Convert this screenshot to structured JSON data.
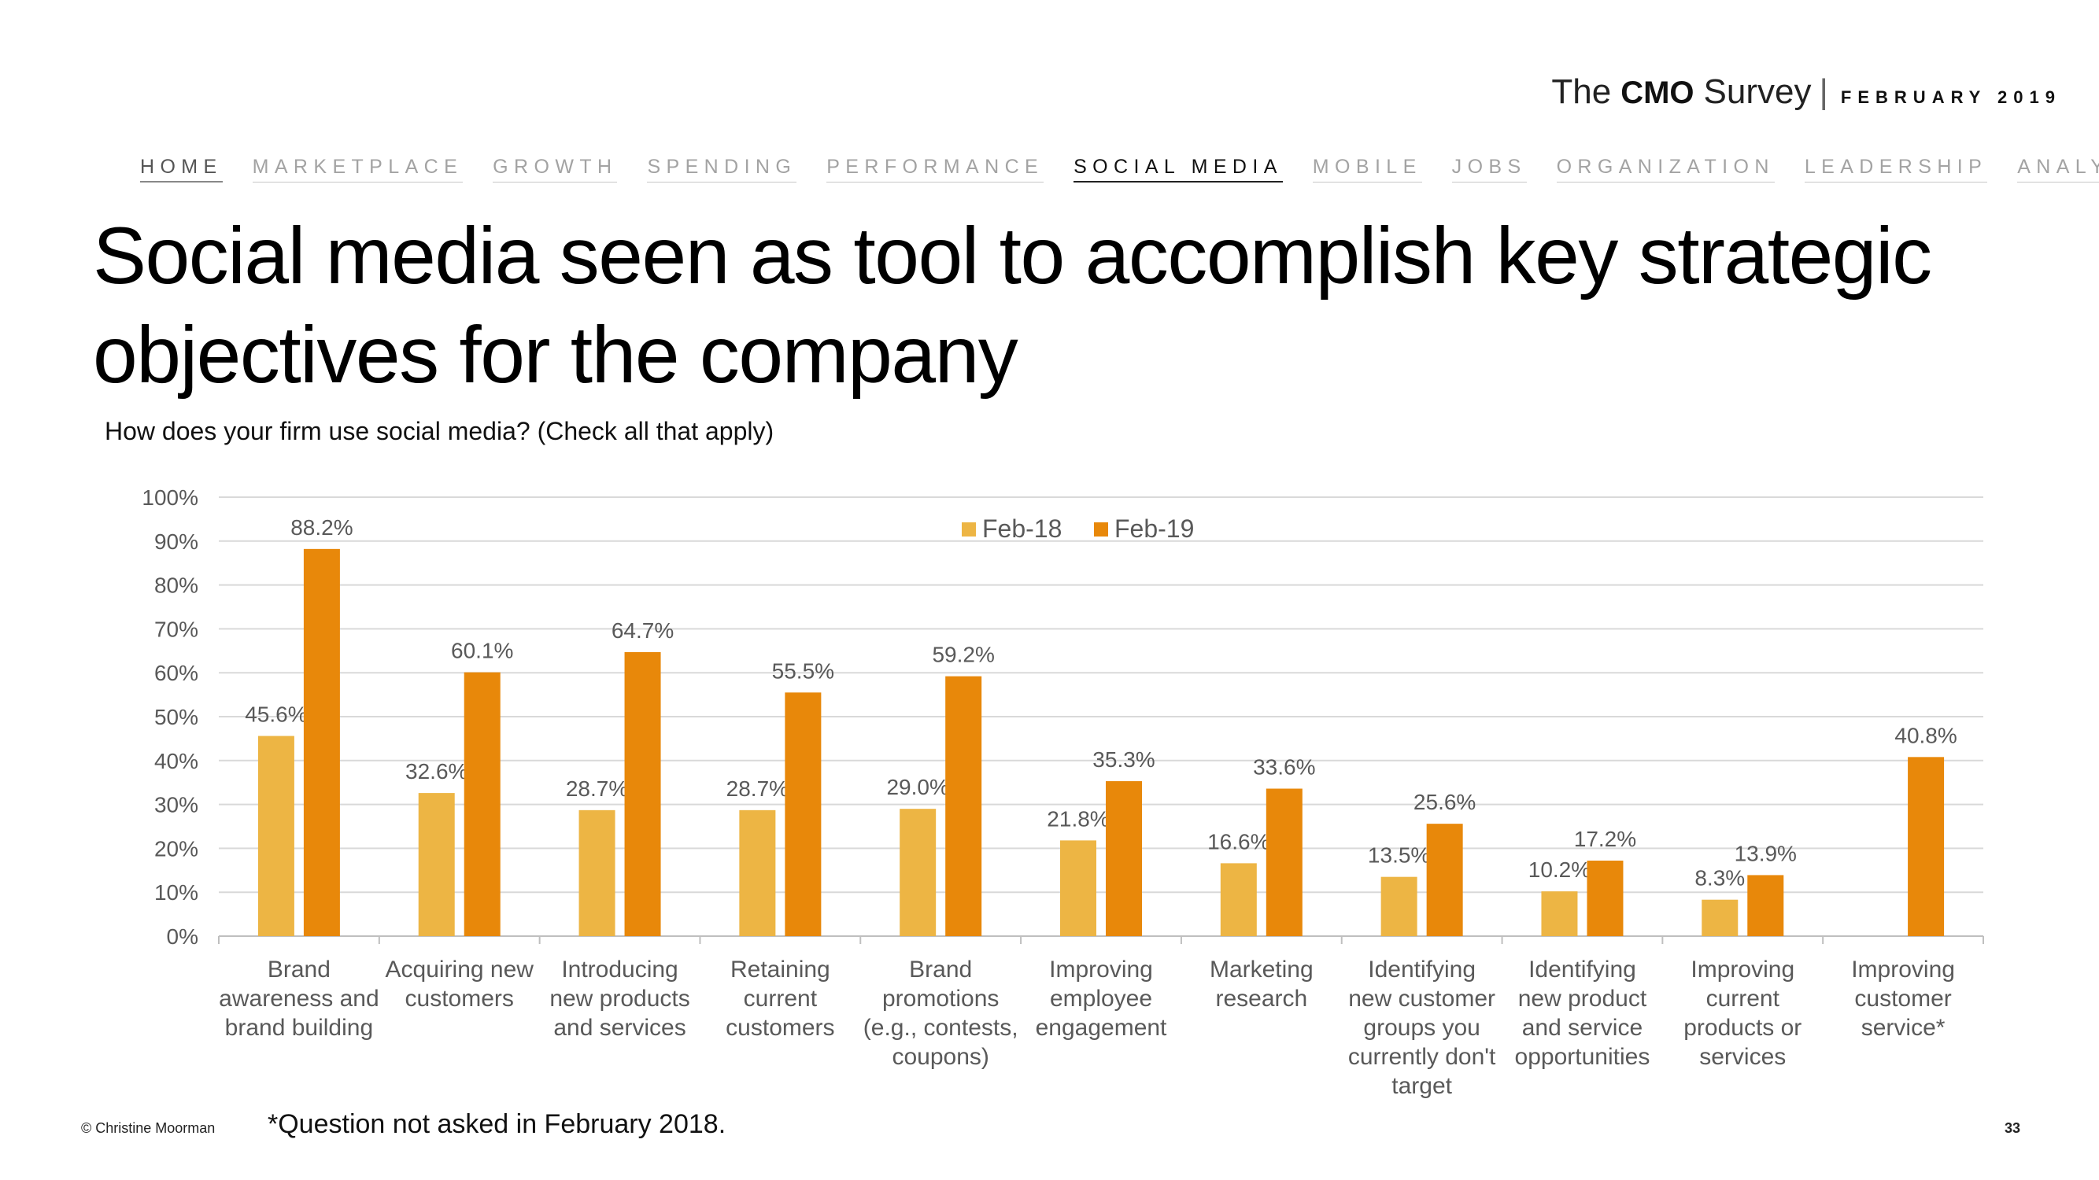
{
  "header": {
    "brand_the": "The",
    "brand_cmo": "CMO",
    "brand_survey": "Survey",
    "brand_sep": "|",
    "brand_date": "FEBRUARY 2019"
  },
  "nav": [
    {
      "label": "HOME"
    },
    {
      "label": "MARKETPLACE"
    },
    {
      "label": "GROWTH"
    },
    {
      "label": "SPENDING"
    },
    {
      "label": "PERFORMANCE"
    },
    {
      "label": "SOCIAL MEDIA"
    },
    {
      "label": "MOBILE"
    },
    {
      "label": "JOBS"
    },
    {
      "label": "ORGANIZATION"
    },
    {
      "label": "LEADERSHIP"
    },
    {
      "label": "ANALYTICS"
    }
  ],
  "nav_active": "SOCIAL MEDIA",
  "page": {
    "title": "Social media seen as tool to accomplish key strategic objectives for the company",
    "question": "How does your firm use social media? (Check all that apply)",
    "footnote": "*Question not asked in February 2018.",
    "copyright": "© Christine Moorman",
    "page_number": "33"
  },
  "chart_data": {
    "type": "bar",
    "categories": [
      "Brand awareness and brand building",
      "Acquiring new customers",
      "Introducing new products and services",
      "Retaining current customers",
      "Brand promotions (e.g., contests, coupons)",
      "Improving employee engagement",
      "Marketing research",
      "Identifying new customer groups you currently don't target",
      "Identifying new product and service opportunities",
      "Improving current products or services",
      "Improving customer service*"
    ],
    "category_lines": [
      [
        "Brand",
        "awareness and",
        "brand building"
      ],
      [
        "Acquiring new",
        "customers"
      ],
      [
        "Introducing",
        "new products",
        "and services"
      ],
      [
        "Retaining",
        "current",
        "customers"
      ],
      [
        "Brand",
        "promotions",
        "(e.g., contests,",
        "coupons)"
      ],
      [
        "Improving",
        "employee",
        "engagement"
      ],
      [
        "Marketing",
        "research"
      ],
      [
        "Identifying",
        "new customer",
        "groups you",
        "currently don't",
        "target"
      ],
      [
        "Identifying",
        "new product",
        "and service",
        "opportunities"
      ],
      [
        "Improving",
        "current",
        "products or",
        "services"
      ],
      [
        "Improving",
        "customer",
        "service*"
      ]
    ],
    "series": [
      {
        "name": "Feb-18",
        "color": "#EDB544",
        "values": [
          45.6,
          32.6,
          28.7,
          28.7,
          29.0,
          21.8,
          16.6,
          13.5,
          10.2,
          8.3,
          null
        ],
        "labels": [
          "45.6%",
          "32.6%",
          "28.7%",
          "28.7%",
          "29.0%",
          "21.8%",
          "16.6%",
          "13.5%",
          "10.2%",
          "8.3%",
          null
        ]
      },
      {
        "name": "Feb-19",
        "color": "#E8880A",
        "values": [
          88.2,
          60.1,
          64.7,
          55.5,
          59.2,
          35.3,
          33.6,
          25.6,
          17.2,
          13.9,
          40.8
        ],
        "labels": [
          "88.2%",
          "60.1%",
          "64.7%",
          "55.5%",
          "59.2%",
          "35.3%",
          "33.6%",
          "25.6%",
          "17.2%",
          "13.9%",
          "40.8%"
        ]
      }
    ],
    "ylim": [
      0,
      100
    ],
    "yticks": [
      "0%",
      "10%",
      "20%",
      "30%",
      "40%",
      "50%",
      "60%",
      "70%",
      "80%",
      "90%",
      "100%"
    ],
    "grid": true,
    "legend_position": "top-center"
  }
}
